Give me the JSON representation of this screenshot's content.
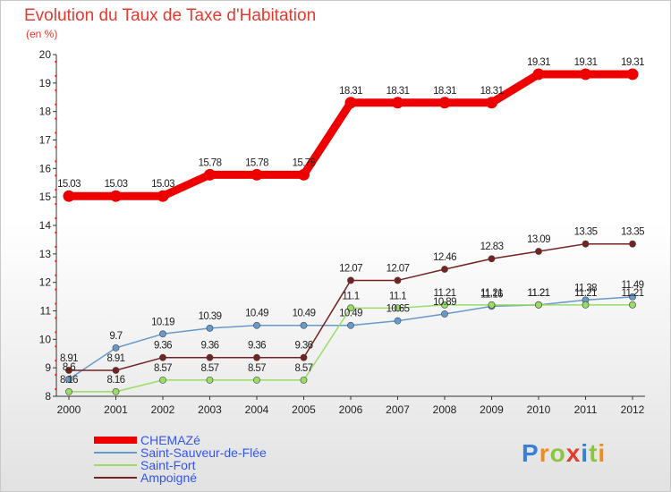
{
  "title": "Evolution du Taux de Taxe d'Habitation",
  "unit": "(en %)",
  "logo": "Proxiti",
  "chart_data": {
    "type": "line",
    "title": "Evolution du Taux de Taxe d'Habitation",
    "ylabel": "(en %)",
    "xlabel": "",
    "x": [
      "2000",
      "2001",
      "2002",
      "2003",
      "2004",
      "2005",
      "2006",
      "2007",
      "2008",
      "2009",
      "2010",
      "2011",
      "2012"
    ],
    "ylim": [
      8,
      20
    ],
    "yticks": [
      8,
      9,
      10,
      11,
      12,
      13,
      14,
      15,
      16,
      17,
      18,
      19,
      20
    ],
    "grid": false,
    "legend": "bottom-left",
    "series": [
      {
        "name": "CHEMAZé",
        "color": "#ee0000",
        "values": [
          15.03,
          15.03,
          15.03,
          15.78,
          15.78,
          15.78,
          18.31,
          18.31,
          18.31,
          18.31,
          19.31,
          19.31,
          19.31
        ]
      },
      {
        "name": "Saint-Sauveur-de-Flée",
        "color": "#6699cc",
        "values": [
          8.6,
          9.7,
          10.19,
          10.39,
          10.49,
          10.49,
          10.49,
          10.65,
          10.89,
          11.16,
          11.21,
          11.38,
          11.49
        ]
      },
      {
        "name": "Saint-Fort",
        "color": "#99dd66",
        "values": [
          8.16,
          8.16,
          8.57,
          8.57,
          8.57,
          8.57,
          11.1,
          11.1,
          11.21,
          11.21,
          11.21,
          11.21,
          11.21
        ]
      },
      {
        "name": "Ampoigné",
        "color": "#772222",
        "values": [
          8.91,
          8.91,
          9.36,
          9.36,
          9.36,
          9.36,
          12.07,
          12.07,
          12.46,
          12.83,
          13.09,
          13.35,
          13.35
        ]
      }
    ]
  }
}
